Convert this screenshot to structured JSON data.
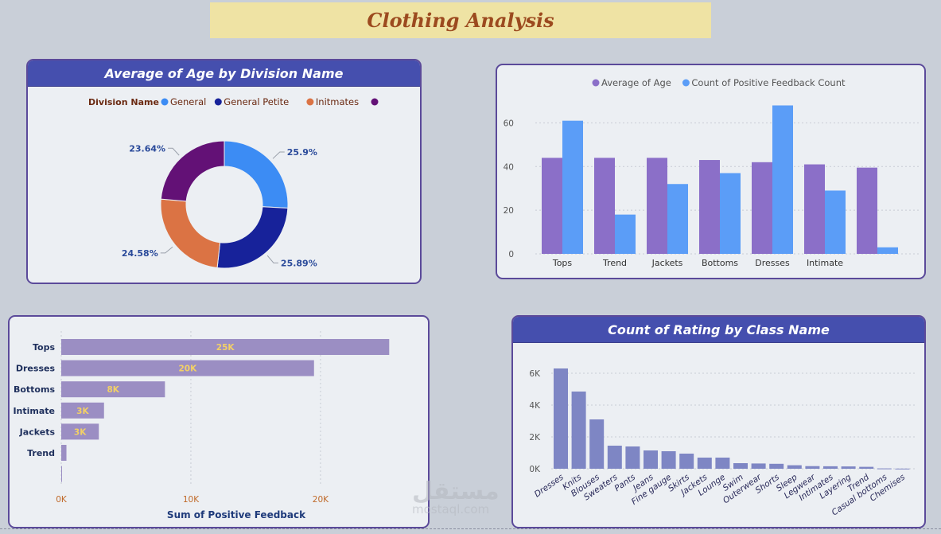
{
  "page": {
    "title": "Clothing Analysis"
  },
  "colors": {
    "donut": [
      "#3c8cf4",
      "#17229a",
      "#db7344",
      "#631176"
    ],
    "age": "#8b6fc8",
    "feedback": "#5b9df7",
    "hbar": "#9b8ec3",
    "hbar_label": "#f2d066",
    "rating": "#7e86c4"
  },
  "watermark": {
    "arabic": "مستقل",
    "latin": "mostaql.com"
  },
  "chart_data": [
    {
      "type": "pie",
      "title": "Average of Age by Division Name",
      "legend_title": "Division Name",
      "labels": [
        "General",
        "General Petite",
        "Initmates",
        ""
      ],
      "values": [
        25.9,
        25.89,
        24.58,
        23.64
      ],
      "value_labels": [
        "25.9%",
        "25.89%",
        "24.58%",
        "23.64%"
      ],
      "donut": true
    },
    {
      "type": "bar",
      "categories": [
        "Tops",
        "Trend",
        "Jackets",
        "Bottoms",
        "Dresses",
        "Intimate",
        ""
      ],
      "series": [
        {
          "name": "Average of Age",
          "values": [
            44,
            44,
            44,
            43,
            42,
            41,
            39.5
          ]
        },
        {
          "name": "Count of Positive Feedback Count",
          "values": [
            61,
            18,
            32,
            37,
            68,
            29,
            3
          ]
        }
      ],
      "ylim": [
        0,
        70
      ],
      "yticks": [
        "0",
        "20",
        "40",
        "60"
      ],
      "legend": "top-left",
      "grid": true
    },
    {
      "type": "bar",
      "orientation": "horizontal",
      "categories": [
        "Tops",
        "Dresses",
        "Bottoms",
        "Intimate",
        "Jackets",
        "Trend",
        ""
      ],
      "values": [
        25300,
        19500,
        8000,
        3300,
        2900,
        400,
        50
      ],
      "data_labels": [
        "25K",
        "20K",
        "8K",
        "3K",
        "3K",
        "",
        ""
      ],
      "xlabel": "Sum of Positive Feedback",
      "xlim": [
        0,
        27000
      ],
      "xticks": [
        "0K",
        "10K",
        "20K"
      ],
      "grid": true
    },
    {
      "type": "bar",
      "title": "Count of Rating by Class Name",
      "categories": [
        "Dresses",
        "Knits",
        "Blouses",
        "Sweaters",
        "Pants",
        "Jeans",
        "Fine gauge",
        "Skirts",
        "Jackets",
        "Lounge",
        "Swim",
        "Outerwear",
        "Shorts",
        "Sleep",
        "Legwear",
        "Intimates",
        "Layering",
        "Trend",
        "Casual bottoms",
        "Chemises"
      ],
      "values": [
        6300,
        4850,
        3100,
        1450,
        1400,
        1150,
        1100,
        950,
        700,
        700,
        350,
        330,
        310,
        220,
        165,
        155,
        145,
        120,
        20,
        10
      ],
      "ylim": [
        0,
        7000
      ],
      "yticks": [
        "0K",
        "2K",
        "4K",
        "6K"
      ],
      "grid": true
    }
  ]
}
